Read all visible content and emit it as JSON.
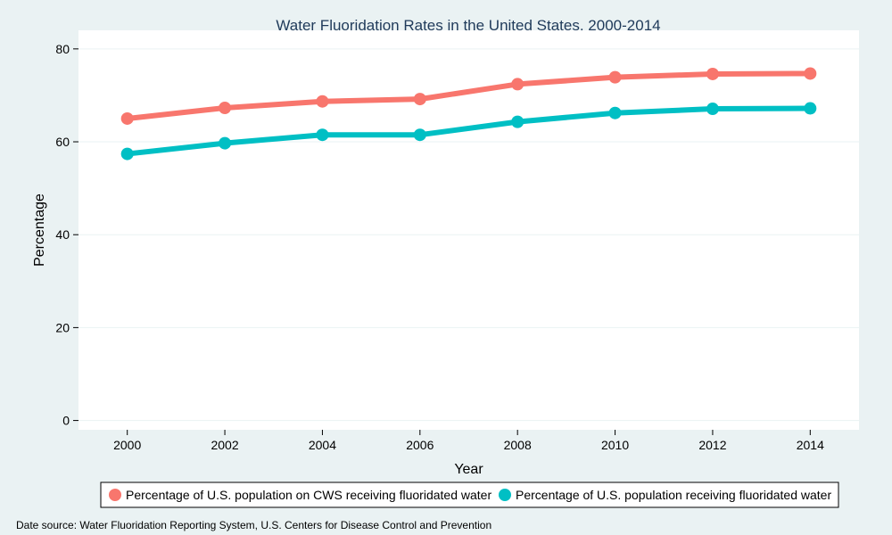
{
  "chart_data": {
    "type": "line",
    "title": "Water Fluoridation Rates in the United States, 2000-2014",
    "xlabel": "Year",
    "ylabel": "Percentage",
    "x": [
      2000,
      2002,
      2004,
      2006,
      2008,
      2010,
      2012,
      2014
    ],
    "xlim": [
      1999,
      2015
    ],
    "ylim": [
      -2,
      84
    ],
    "yticks": [
      0,
      20,
      40,
      60,
      80
    ],
    "grid": true,
    "legend_position": "bottom",
    "series": [
      {
        "name": "Percentage of U.S. population on CWS receiving fluoridated water",
        "color": "#f8766d",
        "values": [
          65.0,
          67.3,
          68.7,
          69.2,
          72.4,
          73.9,
          74.6,
          74.7
        ]
      },
      {
        "name": "Percentage of U.S. population receiving fluoridated water",
        "color": "#00bfc4",
        "values": [
          57.4,
          59.7,
          61.5,
          61.5,
          64.3,
          66.2,
          67.1,
          67.2
        ]
      }
    ]
  },
  "footer": {
    "source": "Date source: Water Fluoridation Reporting System, U.S. Centers for Disease Control and Prevention"
  }
}
